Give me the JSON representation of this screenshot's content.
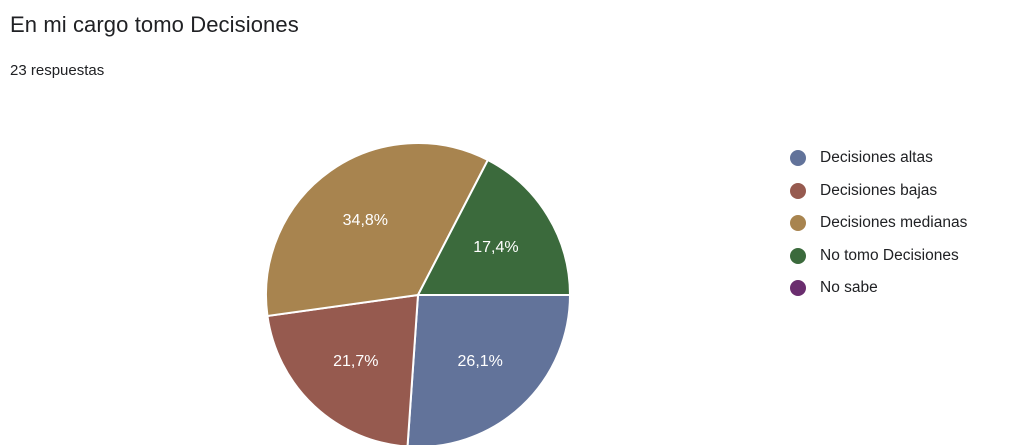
{
  "chart_data": {
    "type": "pie",
    "title": "En mi cargo tomo Decisiones",
    "subtitle": "23 respuestas",
    "slices": [
      {
        "label": "Decisiones altas",
        "value": 26.1,
        "display": "26,1%",
        "color": "#62739a"
      },
      {
        "label": "Decisiones bajas",
        "value": 21.7,
        "display": "21,7%",
        "color": "#965a4f"
      },
      {
        "label": "Decisiones medianas",
        "value": 34.8,
        "display": "34,8%",
        "color": "#a8844f"
      },
      {
        "label": "No tomo Decisiones",
        "value": 17.4,
        "display": "17,4%",
        "color": "#3b6a3c"
      },
      {
        "label": "No sabe",
        "value": 0,
        "display": "",
        "color": "#6a2d6e"
      }
    ],
    "legend_position": "right"
  }
}
